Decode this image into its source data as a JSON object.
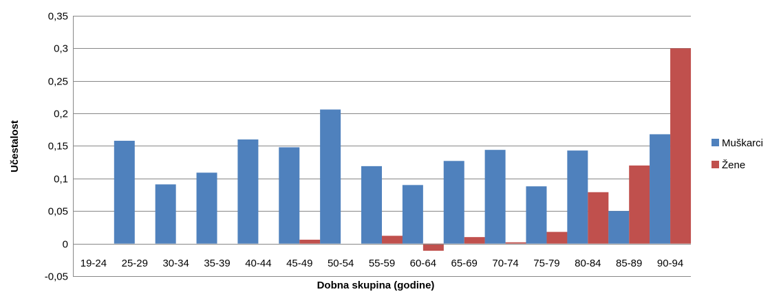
{
  "chart_data": {
    "type": "bar",
    "categories": [
      "19-24",
      "25-29",
      "30-34",
      "35-39",
      "40-44",
      "45-49",
      "50-54",
      "55-59",
      "60-64",
      "65-69",
      "70-74",
      "75-79",
      "80-84",
      "85-89",
      "90-94"
    ],
    "series": [
      {
        "name": "Muškarci",
        "color": "#4F81BD",
        "values": [
          0,
          0.158,
          0.091,
          0.109,
          0.16,
          0.148,
          0.206,
          0.119,
          0.09,
          0.127,
          0.144,
          0.088,
          0.143,
          0.05,
          0.168
        ]
      },
      {
        "name": "Žene",
        "color": "#C0504D",
        "values": [
          0,
          0,
          0,
          0,
          0,
          0.006,
          0,
          0.012,
          -0.011,
          0.01,
          0.002,
          0.018,
          0.079,
          0.12,
          0.3
        ]
      }
    ],
    "xlabel": "Dobna skupina (godine)",
    "ylabel": "Učestalost",
    "ylim": [
      -0.05,
      0.35
    ],
    "yticks": [
      -0.05,
      0,
      0.05,
      0.1,
      0.15,
      0.2,
      0.25,
      0.3,
      0.35
    ],
    "ytick_labels": [
      "-0,05",
      "0",
      "0,05",
      "0,1",
      "0,15",
      "0,2",
      "0,25",
      "0,3",
      "0,35"
    ],
    "grid": true,
    "legend_position": "right"
  }
}
